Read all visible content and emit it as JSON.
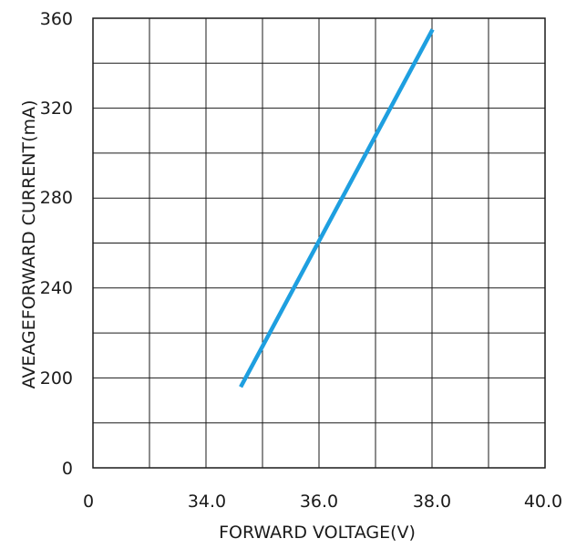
{
  "chart_data": {
    "type": "line",
    "title": "",
    "xlabel": "FORWARD VOLTAGE(V)",
    "ylabel": "AVEAGEFORWARD CURRENT(mA)",
    "x_tick_labels": [
      "0",
      "34.0",
      "36.0",
      "38.0",
      "40.0"
    ],
    "y_tick_labels": [
      "0",
      "200",
      "240",
      "280",
      "320",
      "360"
    ],
    "grid": true,
    "series": [
      {
        "color": "#1e9fe0",
        "x": [
          34.6,
          38.0
        ],
        "y": [
          196,
          355
        ]
      }
    ]
  }
}
